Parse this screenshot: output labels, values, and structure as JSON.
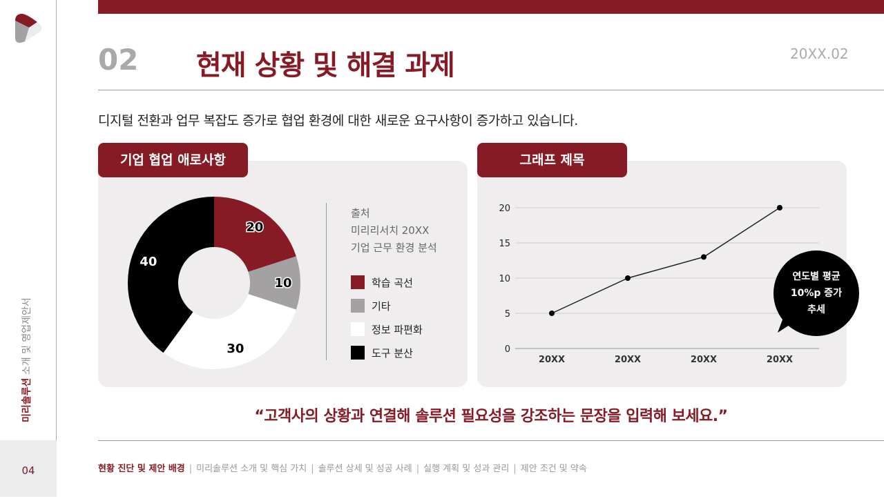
{
  "sidebar": {
    "vertical_title_bold": "미리솔루션",
    "vertical_title_rest": " 소개 및 영업제안서",
    "page_number": "04"
  },
  "header": {
    "section_number": "02",
    "title": "현재 상황 및 해결 과제",
    "date": "20XX.02"
  },
  "subtitle": "디지털 전환과 업무 복잡도 증가로 협업 환경에 대한 새로운 요구사항이 증가하고 있습니다.",
  "left_panel": {
    "tag": "기업 협업 애로사항",
    "source_lines": [
      "출처",
      "미리리서치 20XX",
      "기업 근무 환경 분석"
    ]
  },
  "right_panel": {
    "tag": "그래프 제목",
    "callout_lines": [
      "연도별 평균",
      "10%p 증가",
      "추세"
    ]
  },
  "chart_data": [
    {
      "type": "pie",
      "donut": true,
      "categories": [
        "학습 곡선",
        "기타",
        "정보 파편화",
        "도구 분산"
      ],
      "values": [
        20,
        10,
        30,
        40
      ],
      "colors": [
        "#861b25",
        "#a3a1a2",
        "#ffffff",
        "#000000"
      ],
      "legend": "right"
    },
    {
      "type": "line",
      "categories": [
        "20XX",
        "20XX",
        "20XX",
        "20XX"
      ],
      "values": [
        5,
        10,
        13,
        20
      ],
      "ylim": [
        0,
        20
      ],
      "yticks": [
        0,
        5,
        10,
        15,
        20
      ],
      "grid": true,
      "color": "#222222"
    }
  ],
  "quote": "“고객사의 상황과 연결해 솔루션 필요성을 강조하는 문장을 입력해 보세요.”",
  "footer": {
    "items": [
      "현황 진단 및 제안 배경",
      "미리솔루션 소개 및 핵심 가치",
      "솔루션 상세 및 성공 사례",
      "실행 계획 및 성과 관리",
      "제안 조건 및 약속"
    ],
    "separator": "|",
    "active_index": 0
  },
  "colors": {
    "accent": "#861b25",
    "gray": "#a3a1a2"
  }
}
